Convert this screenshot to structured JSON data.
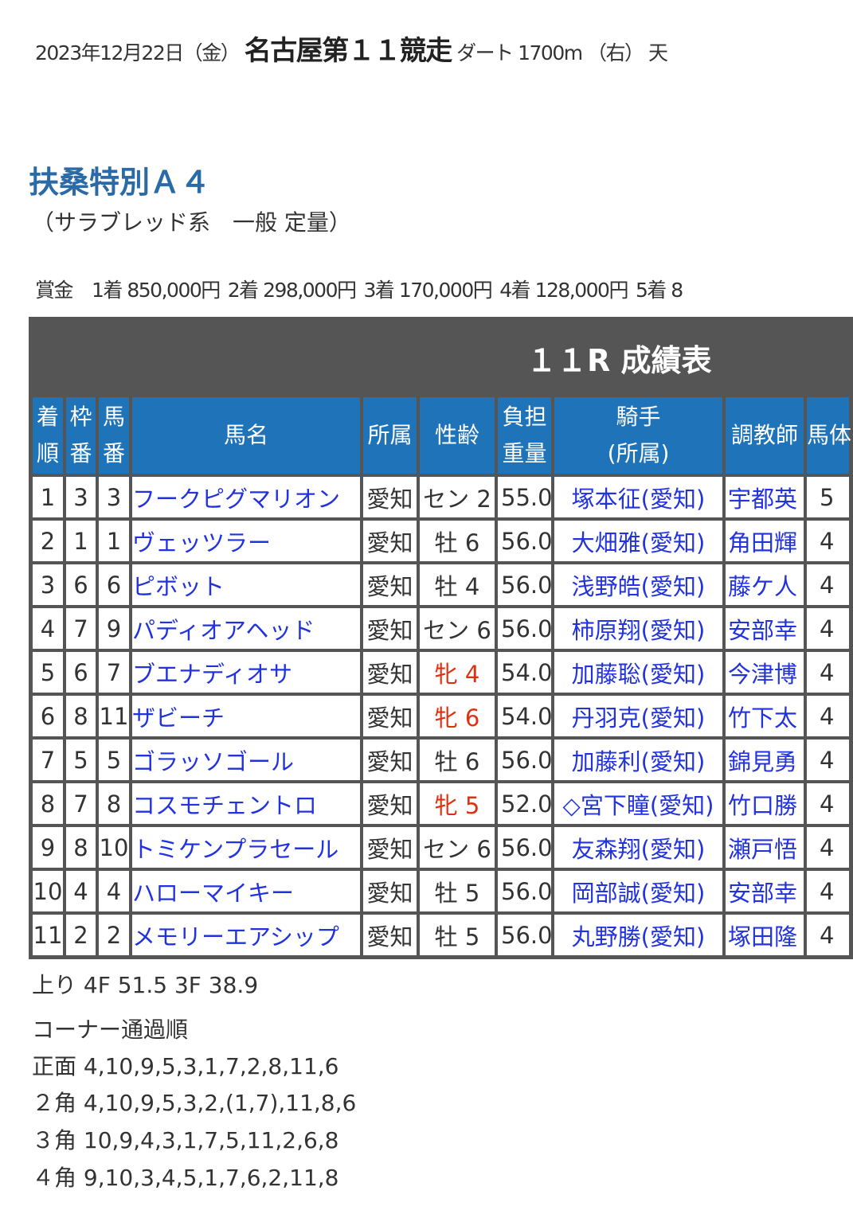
{
  "header": {
    "date": "2023年12月22日（金）",
    "race": "名古屋第１１競走",
    "course": "ダート 1700m （右）",
    "weather": "天"
  },
  "race_name": "扶桑特別Ａ４",
  "race_condition": "（サラブレッド系　一般 定量）",
  "prize": {
    "label": "賞金",
    "items": [
      "1着 850,000円",
      "2着 298,000円",
      "3着 170,000円",
      "4着 128,000円",
      "5着 8"
    ]
  },
  "table": {
    "title": "１１R 成績表",
    "columns": [
      "着順",
      "枠番",
      "馬番",
      "馬名",
      "所属",
      "性齢",
      "負担重量",
      "騎手(所属)",
      "調教師",
      "馬体"
    ],
    "column_lines": [
      [
        "着",
        "順"
      ],
      [
        "枠",
        "番"
      ],
      [
        "馬",
        "番"
      ],
      [
        "馬名"
      ],
      [
        "所属"
      ],
      [
        "性齢"
      ],
      [
        "負担",
        "重量"
      ],
      [
        "騎手",
        "(所属)"
      ],
      [
        "調教師"
      ],
      [
        "馬体"
      ]
    ],
    "rows": [
      {
        "rank": "1",
        "waku": "3",
        "umaban": "3",
        "name": "フークピグマリオン",
        "affil": "愛知",
        "sexage": "セン 2",
        "weight": "55.0",
        "jockey": "塚本征(愛知)",
        "trainer": "宇都英",
        "body": "5",
        "female": false
      },
      {
        "rank": "2",
        "waku": "1",
        "umaban": "1",
        "name": "ヴェッツラー",
        "affil": "愛知",
        "sexage": "牡 6",
        "weight": "56.0",
        "jockey": "大畑雅(愛知)",
        "trainer": "角田輝",
        "body": "4",
        "female": false
      },
      {
        "rank": "3",
        "waku": "6",
        "umaban": "6",
        "name": "ピボット",
        "affil": "愛知",
        "sexage": "牡 4",
        "weight": "56.0",
        "jockey": "浅野皓(愛知)",
        "trainer": "藤ケ人",
        "body": "4",
        "female": false
      },
      {
        "rank": "4",
        "waku": "7",
        "umaban": "9",
        "name": "パディオアヘッド",
        "affil": "愛知",
        "sexage": "セン 6",
        "weight": "56.0",
        "jockey": "柿原翔(愛知)",
        "trainer": "安部幸",
        "body": "4",
        "female": false
      },
      {
        "rank": "5",
        "waku": "6",
        "umaban": "7",
        "name": "ブエナディオサ",
        "affil": "愛知",
        "sexage": "牝 4",
        "weight": "54.0",
        "jockey": "加藤聡(愛知)",
        "trainer": "今津博",
        "body": "4",
        "female": true
      },
      {
        "rank": "6",
        "waku": "8",
        "umaban": "11",
        "name": "ザビーチ",
        "affil": "愛知",
        "sexage": "牝 6",
        "weight": "54.0",
        "jockey": "丹羽克(愛知)",
        "trainer": "竹下太",
        "body": "4",
        "female": true
      },
      {
        "rank": "7",
        "waku": "5",
        "umaban": "5",
        "name": "ゴラッソゴール",
        "affil": "愛知",
        "sexage": "牡 6",
        "weight": "56.0",
        "jockey": "加藤利(愛知)",
        "trainer": "錦見勇",
        "body": "4",
        "female": false
      },
      {
        "rank": "8",
        "waku": "7",
        "umaban": "8",
        "name": "コスモチェントロ",
        "affil": "愛知",
        "sexage": "牝 5",
        "weight": "52.0",
        "jockey": "◇宮下瞳(愛知)",
        "trainer": "竹口勝",
        "body": "4",
        "female": true
      },
      {
        "rank": "9",
        "waku": "8",
        "umaban": "10",
        "name": "トミケンプラセール",
        "affil": "愛知",
        "sexage": "セン 6",
        "weight": "56.0",
        "jockey": "友森翔(愛知)",
        "trainer": "瀬戸悟",
        "body": "4",
        "female": false
      },
      {
        "rank": "10",
        "waku": "4",
        "umaban": "4",
        "name": "ハローマイキー",
        "affil": "愛知",
        "sexage": "牡 5",
        "weight": "56.0",
        "jockey": "岡部誠(愛知)",
        "trainer": "安部幸",
        "body": "4",
        "female": false
      },
      {
        "rank": "11",
        "waku": "2",
        "umaban": "2",
        "name": "メモリーエアシップ",
        "affil": "愛知",
        "sexage": "牡 5",
        "weight": "56.0",
        "jockey": "丸野勝(愛知)",
        "trainer": "塚田隆",
        "body": "4",
        "female": false
      }
    ]
  },
  "footer": {
    "last_furlongs": "上り 4F 51.5 3F 38.9",
    "corner_title": "コーナー通過順",
    "corners": [
      "正面 4,10,9,5,3,1,7,2,8,11,6",
      "２角 4,10,9,5,3,2,(1,7),11,8,6",
      "３角 10,9,4,3,1,7,5,11,2,6,8",
      "４角 9,10,3,4,5,1,7,6,2,11,8"
    ]
  },
  "colors": {
    "header_blue": "#1f73b9",
    "title_gray": "#555555",
    "link_blue": "#2233dd",
    "female_red": "#e03010",
    "race_name_blue": "#2a6aa6"
  }
}
